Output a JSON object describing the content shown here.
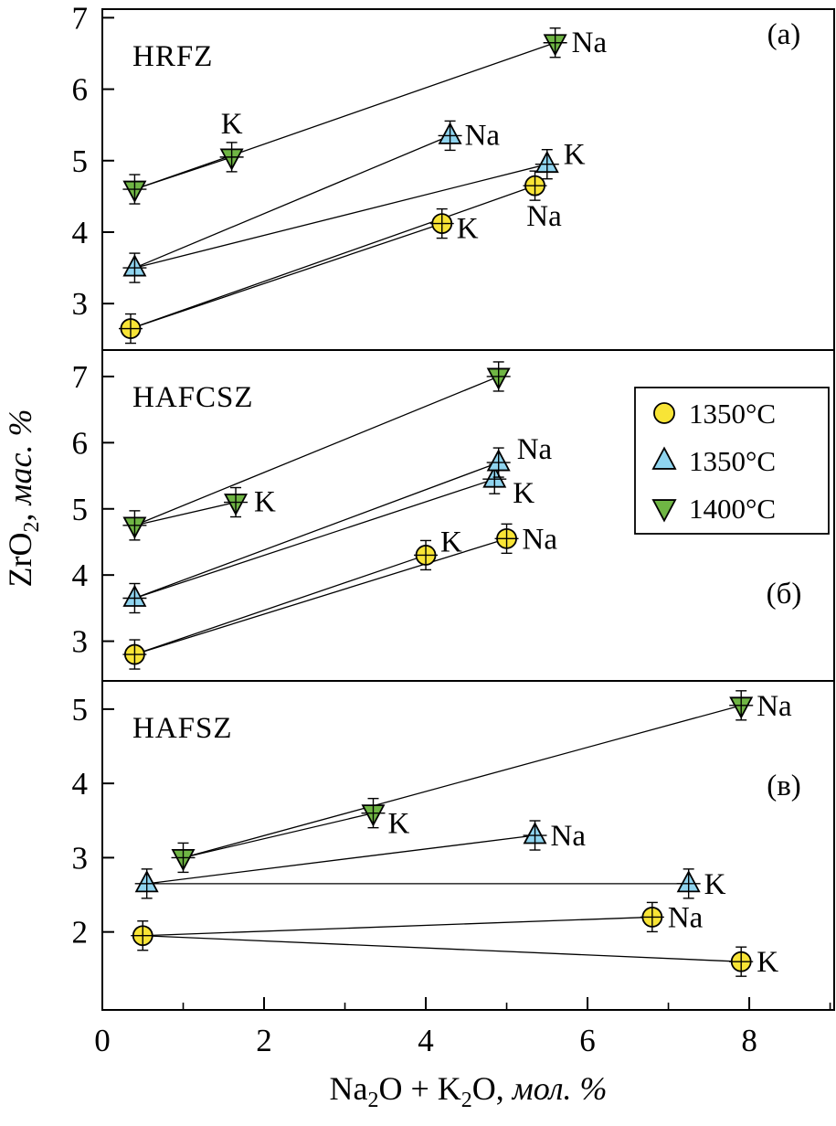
{
  "figure": {
    "xlabel": "Na₂O + K₂O, мол. %",
    "ylabel": "ZrO₂, мас. %"
  },
  "axes": {
    "x": {
      "min": 0,
      "max": 9.05,
      "major_ticks": [
        0,
        2,
        4,
        6,
        8
      ],
      "minor_ticks": [
        1,
        3,
        5,
        7,
        9
      ],
      "label": "Na₂O + K₂O, мол. %"
    },
    "y_label": "ZrO₂, мас. %"
  },
  "legend": {
    "position": "panel-b-top-right",
    "entries": [
      {
        "label": "1350°C",
        "marker": "circle",
        "color": "#F8E436"
      },
      {
        "label": "1350°C",
        "marker": "triangle-up",
        "color": "#8FD4EF"
      },
      {
        "label": "1400°C",
        "marker": "triangle-down",
        "color": "#6FB544"
      }
    ]
  },
  "chart_data": [
    {
      "type": "scatter",
      "panel_label": "(а)",
      "title": "HRFZ",
      "ylim": [
        2.35,
        7.12
      ],
      "yticks": [
        3,
        4,
        5,
        6,
        7
      ],
      "series": [
        {
          "name": "1350°C",
          "marker": "circle",
          "color": "#F8E436",
          "segments": [
            [
              0,
              1
            ],
            [
              0,
              2
            ]
          ],
          "points": [
            {
              "x": 0.35,
              "y": 2.65,
              "label": ""
            },
            {
              "x": 4.2,
              "y": 4.12,
              "label": "K",
              "dx": 16,
              "dy": 16
            },
            {
              "x": 5.35,
              "y": 4.65,
              "label": "Na",
              "dx": 10,
              "dy": 44,
              "anchor": "middle"
            }
          ]
        },
        {
          "name": "1350°C",
          "marker": "triangle-up",
          "color": "#8FD4EF",
          "segments": [
            [
              0,
              1
            ],
            [
              0,
              2
            ]
          ],
          "points": [
            {
              "x": 0.4,
              "y": 3.5,
              "label": ""
            },
            {
              "x": 4.3,
              "y": 5.35,
              "label": "Na",
              "dx": 16,
              "dy": 10
            },
            {
              "x": 5.5,
              "y": 4.95,
              "label": "K",
              "dx": 18,
              "dy": 0
            }
          ]
        },
        {
          "name": "1400°C",
          "marker": "triangle-down",
          "color": "#6FB544",
          "segments": [
            [
              0,
              1
            ],
            [
              0,
              2
            ]
          ],
          "points": [
            {
              "x": 0.4,
              "y": 4.6,
              "label": ""
            },
            {
              "x": 1.6,
              "y": 5.05,
              "label": "K",
              "dx": 0,
              "dy": -26,
              "anchor": "middle"
            },
            {
              "x": 5.6,
              "y": 6.65,
              "label": "Na",
              "dx": 18,
              "dy": 10
            }
          ]
        }
      ]
    },
    {
      "type": "scatter",
      "panel_label": "(б)",
      "title": "HAFCSZ",
      "ylim": [
        2.4,
        7.4
      ],
      "yticks": [
        3,
        4,
        5,
        6,
        7
      ],
      "series": [
        {
          "name": "1350°C",
          "marker": "circle",
          "color": "#F8E436",
          "segments": [
            [
              0,
              1
            ],
            [
              0,
              2
            ]
          ],
          "points": [
            {
              "x": 0.4,
              "y": 2.8,
              "label": ""
            },
            {
              "x": 4.0,
              "y": 4.3,
              "label": "K",
              "dx": 16,
              "dy": -4
            },
            {
              "x": 5.0,
              "y": 4.55,
              "label": "Na",
              "dx": 17,
              "dy": 11
            }
          ]
        },
        {
          "name": "1350°C",
          "marker": "triangle-up",
          "color": "#8FD4EF",
          "segments": [
            [
              0,
              1
            ],
            [
              0,
              2
            ]
          ],
          "points": [
            {
              "x": 0.4,
              "y": 3.65,
              "label": ""
            },
            {
              "x": 4.85,
              "y": 5.45,
              "label": "K",
              "dx": 20,
              "dy": 26
            },
            {
              "x": 4.9,
              "y": 5.7,
              "label": "Na",
              "dx": 20,
              "dy": -4
            }
          ]
        },
        {
          "name": "1400°C",
          "marker": "triangle-down",
          "color": "#6FB544",
          "segments": [
            [
              0,
              1
            ],
            [
              0,
              2
            ]
          ],
          "points": [
            {
              "x": 0.4,
              "y": 4.75,
              "label": ""
            },
            {
              "x": 1.65,
              "y": 5.1,
              "label": "K",
              "dx": 20,
              "dy": 10
            },
            {
              "x": 4.9,
              "y": 7.0,
              "label": ""
            }
          ]
        }
      ]
    },
    {
      "type": "scatter",
      "panel_label": "(в)",
      "title": "HAFSZ",
      "ylim": [
        0.95,
        5.38
      ],
      "yticks": [
        2,
        3,
        4,
        5
      ],
      "series": [
        {
          "name": "1350°C",
          "marker": "circle",
          "color": "#F8E436",
          "segments": [
            [
              0,
              1
            ],
            [
              0,
              2
            ]
          ],
          "points": [
            {
              "x": 0.5,
              "y": 1.95,
              "label": ""
            },
            {
              "x": 6.8,
              "y": 2.2,
              "label": "Na",
              "dx": 17,
              "dy": 11
            },
            {
              "x": 7.9,
              "y": 1.6,
              "label": "K",
              "dx": 17,
              "dy": 11
            }
          ]
        },
        {
          "name": "1350°C",
          "marker": "triangle-up",
          "color": "#8FD4EF",
          "segments": [
            [
              0,
              1
            ],
            [
              0,
              2
            ]
          ],
          "points": [
            {
              "x": 0.55,
              "y": 2.65,
              "label": ""
            },
            {
              "x": 5.35,
              "y": 3.3,
              "label": "Na",
              "dx": 17,
              "dy": 11
            },
            {
              "x": 7.25,
              "y": 2.65,
              "label": "K",
              "dx": 17,
              "dy": 11
            }
          ]
        },
        {
          "name": "1400°C",
          "marker": "triangle-down",
          "color": "#6FB544",
          "segments": [
            [
              0,
              1
            ],
            [
              0,
              2
            ]
          ],
          "points": [
            {
              "x": 1.0,
              "y": 3.0,
              "label": ""
            },
            {
              "x": 3.35,
              "y": 3.6,
              "label": "K",
              "dx": 16,
              "dy": 22
            },
            {
              "x": 7.9,
              "y": 5.05,
              "label": "Na",
              "dx": 17,
              "dy": 11
            }
          ]
        }
      ]
    }
  ]
}
